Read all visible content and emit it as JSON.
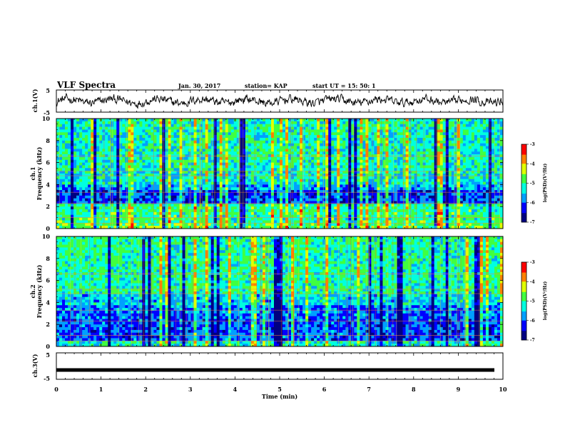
{
  "header": {
    "title": "VLF Spectra",
    "date": "Jan. 30, 2017",
    "station": "station= KAP",
    "start": "start  UT =   15: 50: 1"
  },
  "chart_data": [
    {
      "type": "line",
      "ylabel": "ch.1(V)",
      "ylim": [
        -5,
        5
      ],
      "yticks": [
        "5",
        "-5"
      ],
      "xlim": [
        0,
        10
      ],
      "signal": "noisy waveform oscillating mostly between about -2 and +2 V"
    },
    {
      "type": "heatmap",
      "ylabel_line1": "ch.1",
      "ylabel_line2": "Frequency (kHz)",
      "ylim": [
        0,
        10
      ],
      "yticks": [
        "0",
        "2",
        "4",
        "6",
        "8",
        "10"
      ],
      "xlim": [
        0,
        10
      ],
      "colorbar": {
        "label": "log(PSD)(V²/Hz)",
        "range": [
          -7,
          -3
        ],
        "ticks": [
          "-3",
          "-4",
          "-5",
          "-6",
          "-7"
        ]
      }
    },
    {
      "type": "heatmap",
      "ylabel_line1": "ch.2",
      "ylabel_line2": "Frequency (kHz)",
      "ylim": [
        0,
        10
      ],
      "yticks": [
        "0",
        "2",
        "4",
        "6",
        "8",
        "10"
      ],
      "xlim": [
        0,
        10
      ],
      "colorbar": {
        "label": "log(PSD)(V²/Hz)",
        "range": [
          -7,
          -3
        ],
        "ticks": [
          "-3",
          "-4",
          "-5",
          "-6",
          "-7"
        ]
      }
    },
    {
      "type": "line",
      "ylabel": "ch.3(V)",
      "ylim": [
        -5,
        5
      ],
      "yticks": [
        "5",
        "-5"
      ],
      "xlim": [
        0,
        10
      ],
      "signal": "flat thick line at about -1.5 V"
    }
  ],
  "xaxis": {
    "label": "Time  (min)",
    "ticks": [
      "0",
      "1",
      "2",
      "3",
      "4",
      "5",
      "6",
      "7",
      "8",
      "9",
      "10"
    ]
  },
  "colors": {
    "ink": "#000000",
    "colormap": [
      "#000080",
      "#0000ff",
      "#00a0ff",
      "#00ffe0",
      "#40ff40",
      "#e0ff00",
      "#ff8000",
      "#ff0000",
      "#ffffff"
    ]
  }
}
